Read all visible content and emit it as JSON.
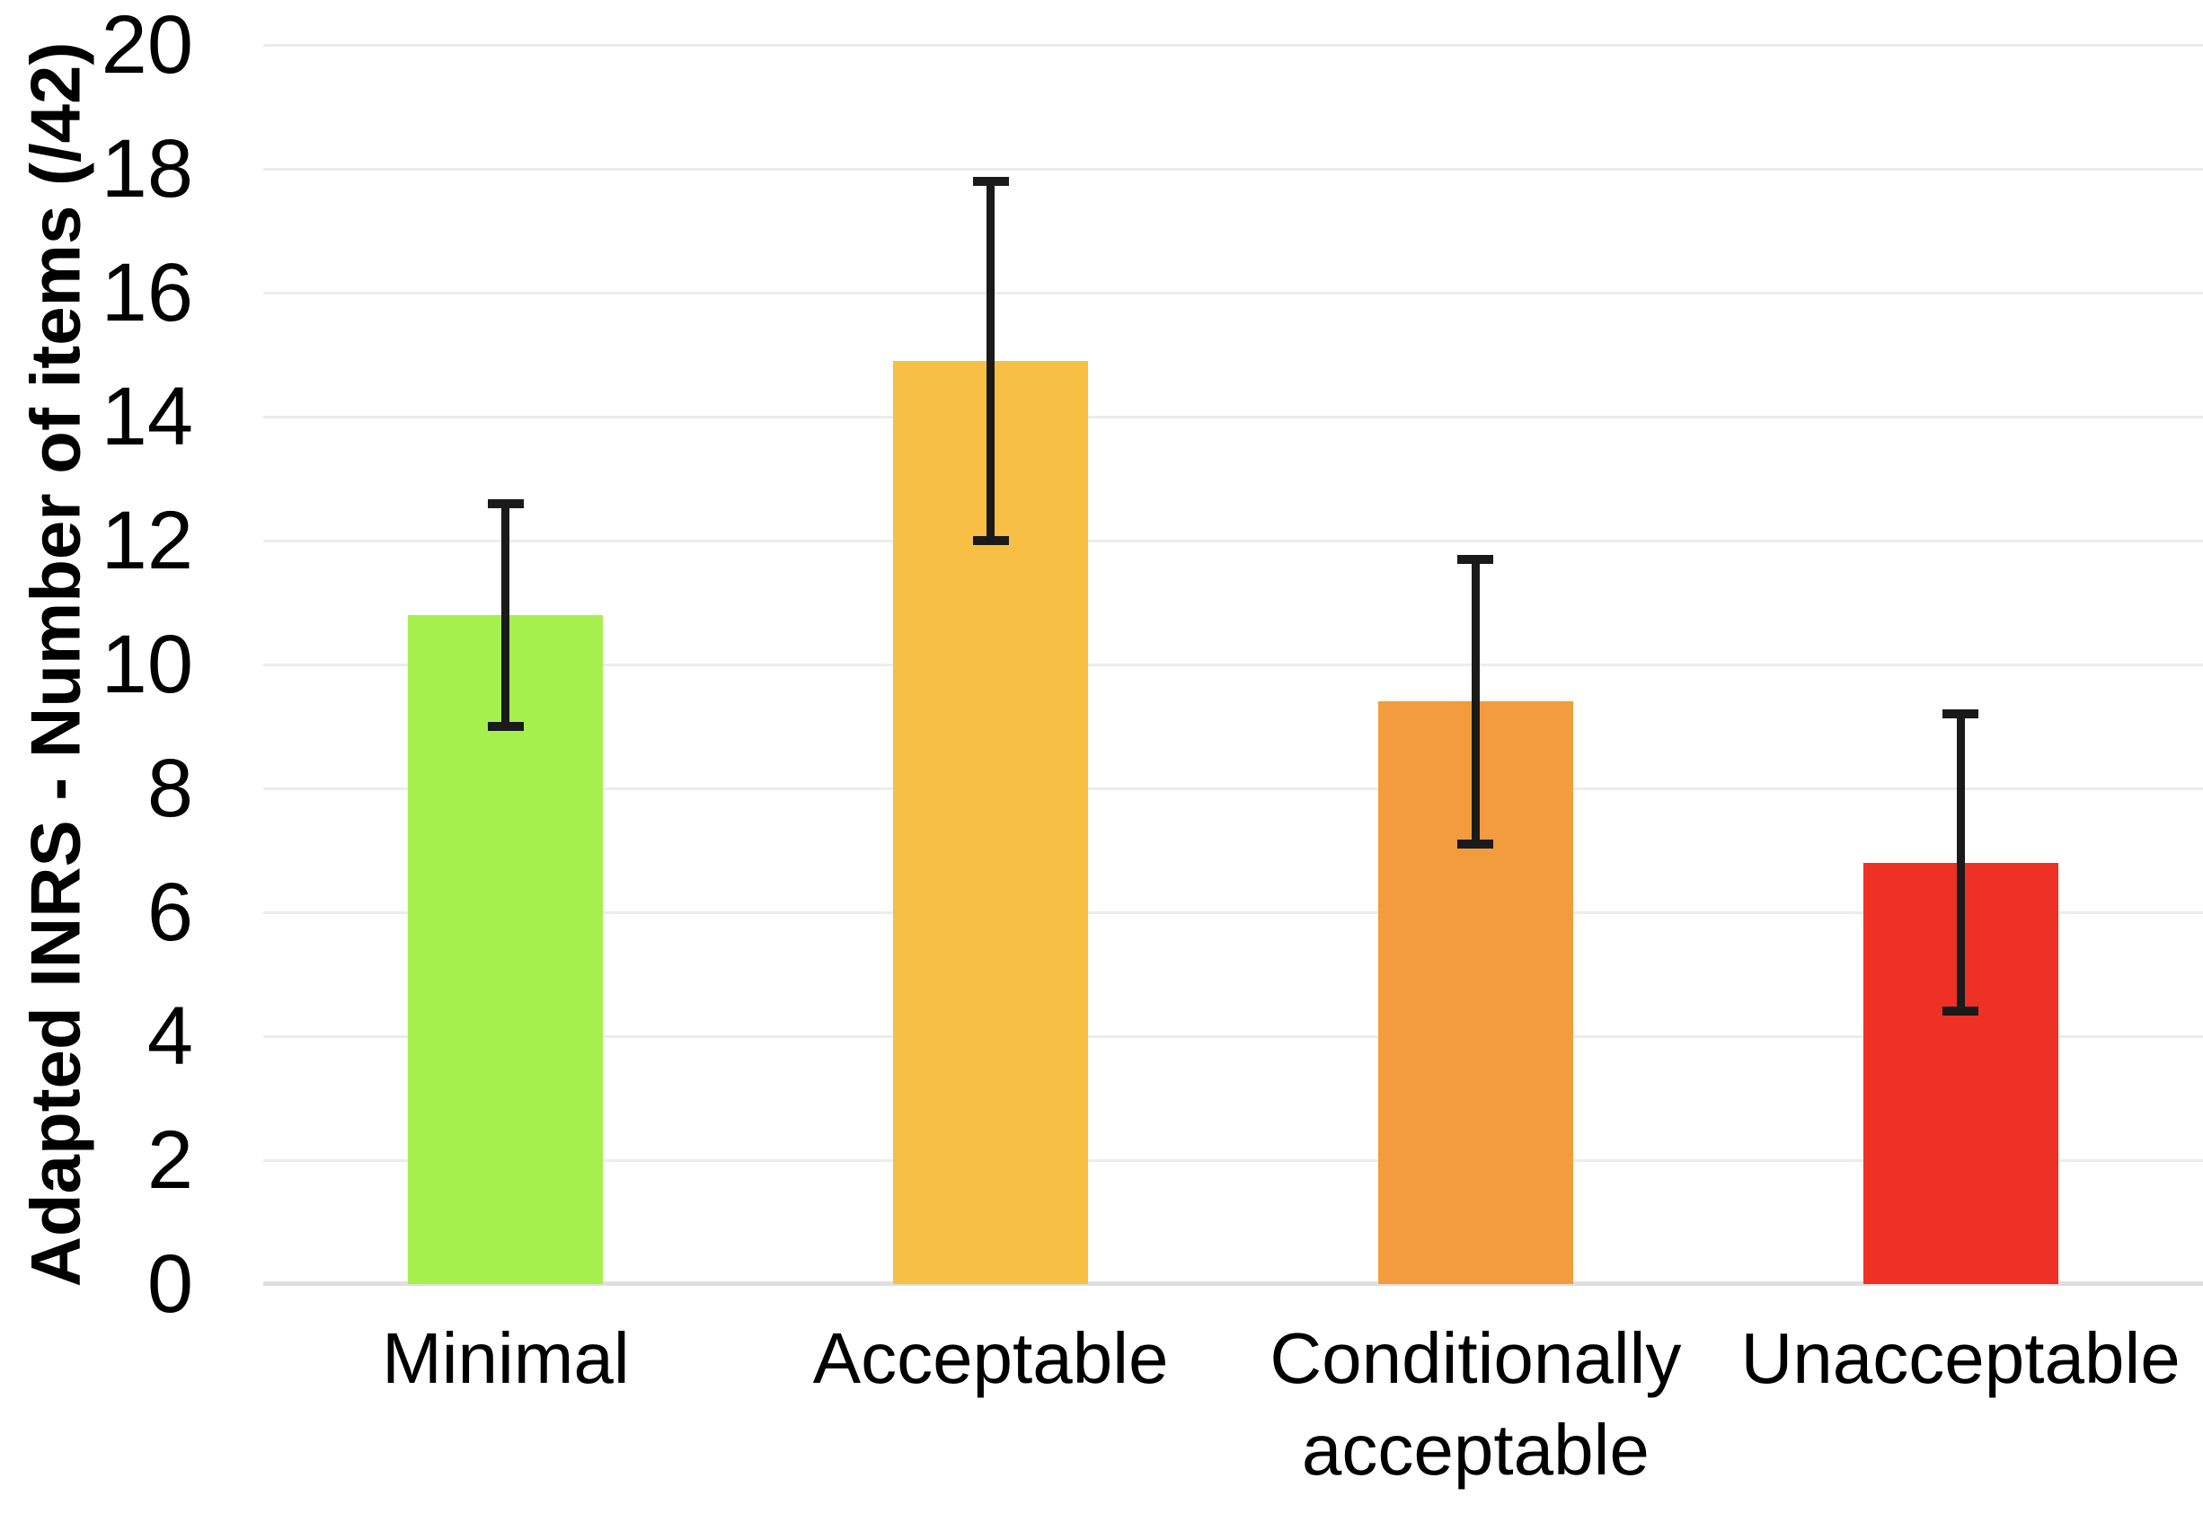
{
  "figure": {
    "background": "#ffffff",
    "text_color": "#000000"
  },
  "chart_data": {
    "type": "bar",
    "title": "",
    "categories": [
      "Minimal",
      "Acceptable",
      "Conditionally acceptable",
      "Unacceptable"
    ],
    "values": [
      10.8,
      14.9,
      9.4,
      6.8
    ],
    "errors": [
      1.8,
      2.9,
      2.3,
      2.4
    ],
    "bar_colors": [
      "#a6f04e",
      "#f7c045",
      "#f29c3d",
      "#ee3124"
    ],
    "error_bar_color": "#1a1a1a",
    "xlabel": "",
    "ylabel": "Adapted INRS - Number of items (/42)",
    "ylim": [
      0,
      20
    ],
    "yticks": [
      0,
      2,
      4,
      6,
      8,
      10,
      12,
      14,
      16,
      18,
      20
    ],
    "grid": "horizontal",
    "gridline_color": "#ececec",
    "baseline_color": "#dfdfdf",
    "legend_position": "none"
  }
}
